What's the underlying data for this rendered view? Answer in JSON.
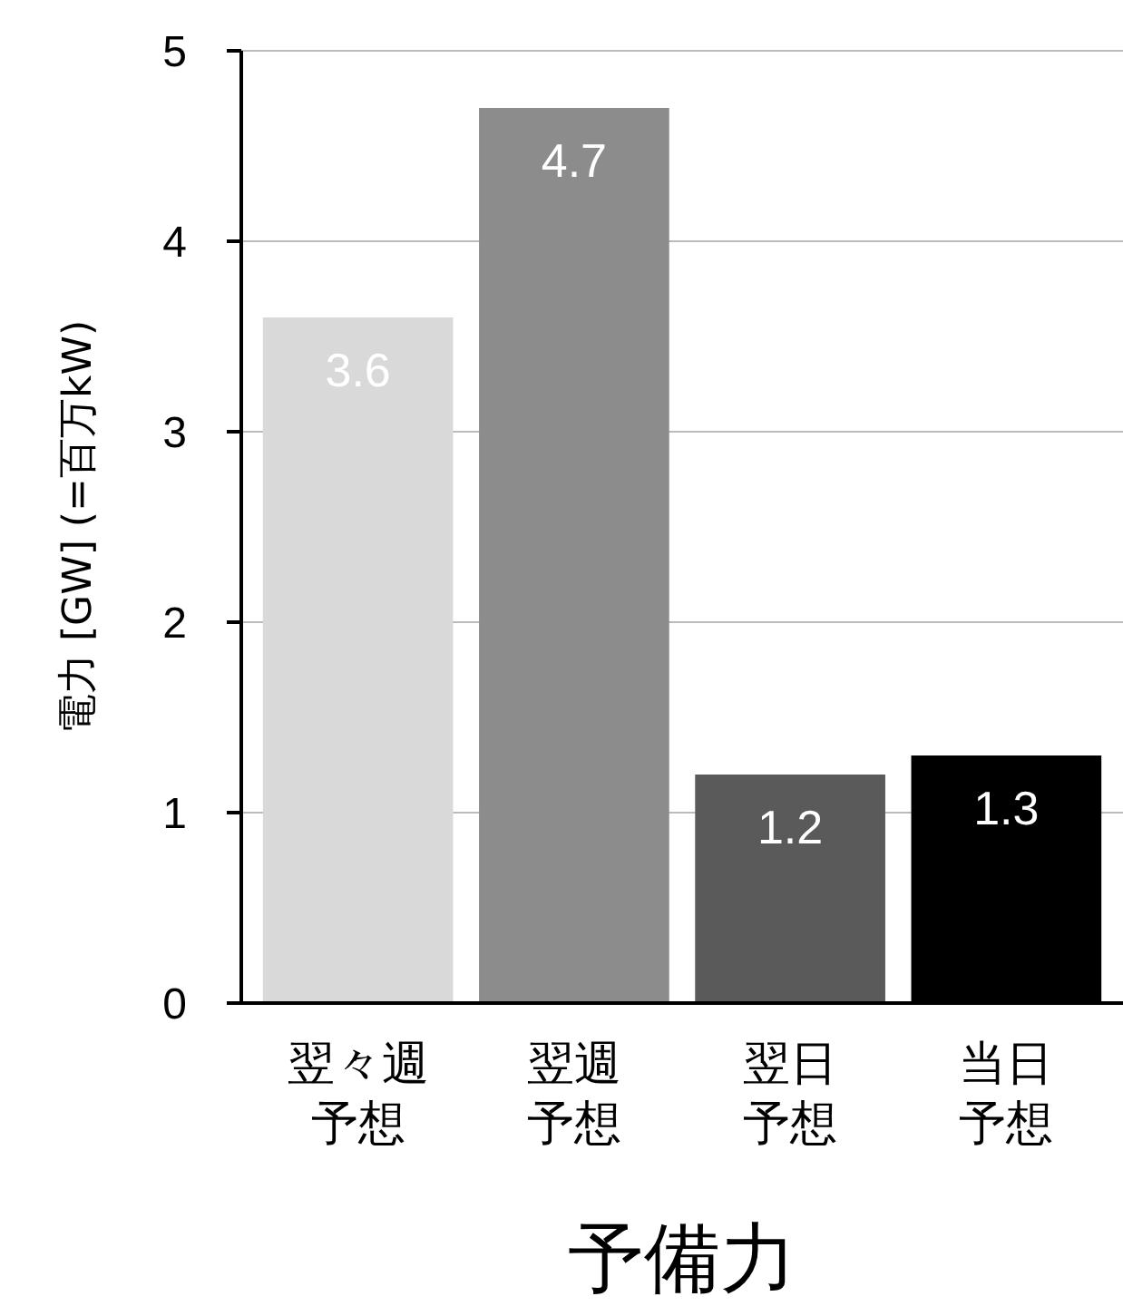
{
  "chart_data": {
    "type": "bar",
    "xlabel": "予備力",
    "ylabel": "電力 [GW] (=百万kW)",
    "categories": [
      "翌々週予想",
      "翌週予想",
      "翌日予想",
      "当日予想"
    ],
    "values": [
      3.6,
      4.7,
      1.2,
      1.3
    ],
    "colors": [
      "#d9d9d9",
      "#8c8c8c",
      "#5a5a5a",
      "#000000"
    ],
    "ylim": [
      0,
      5
    ],
    "yticks": [
      0,
      1,
      2,
      3,
      4,
      5
    ],
    "grid": "y",
    "data_labels": true
  }
}
